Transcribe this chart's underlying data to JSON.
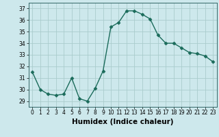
{
  "x": [
    0,
    1,
    2,
    3,
    4,
    5,
    6,
    7,
    8,
    9,
    10,
    11,
    12,
    13,
    14,
    15,
    16,
    17,
    18,
    19,
    20,
    21,
    22,
    23
  ],
  "y": [
    31.5,
    30.0,
    29.6,
    29.5,
    29.6,
    31.0,
    29.2,
    29.0,
    30.1,
    31.6,
    35.4,
    35.8,
    36.8,
    36.8,
    36.5,
    36.1,
    34.7,
    34.0,
    34.0,
    33.6,
    33.2,
    33.1,
    32.9,
    32.4
  ],
  "line_color": "#1a6b5a",
  "marker": "D",
  "markersize": 2.5,
  "bg_color": "#cde8ec",
  "grid_color": "#aacccc",
  "xlabel": "Humidex (Indice chaleur)",
  "ylabel": "",
  "title": "",
  "xlim": [
    -0.5,
    23.5
  ],
  "ylim": [
    28.5,
    37.5
  ],
  "yticks": [
    29,
    30,
    31,
    32,
    33,
    34,
    35,
    36,
    37
  ],
  "xticks": [
    0,
    1,
    2,
    3,
    4,
    5,
    6,
    7,
    8,
    9,
    10,
    11,
    12,
    13,
    14,
    15,
    16,
    17,
    18,
    19,
    20,
    21,
    22,
    23
  ],
  "tick_label_fontsize": 5.5,
  "xlabel_fontsize": 7.5
}
